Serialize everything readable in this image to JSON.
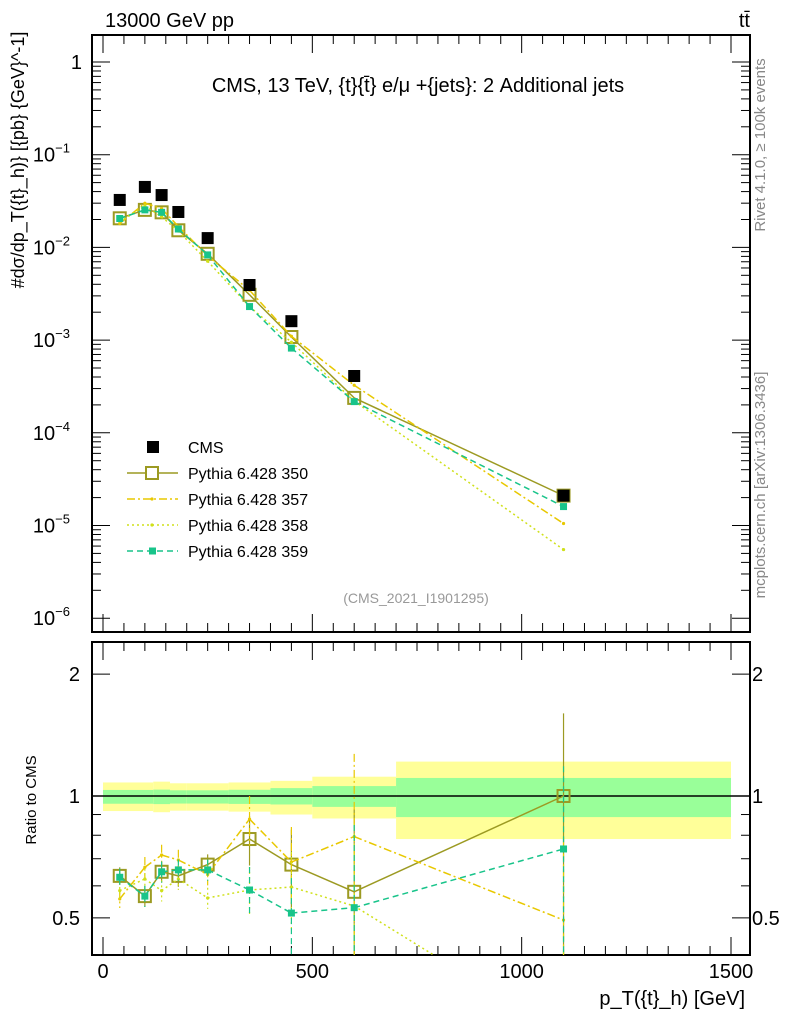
{
  "header": {
    "left": "13000 GeV pp",
    "right": "tt̄"
  },
  "side": {
    "top": "Rivet 4.1.0, ≥ 100k events",
    "bottom": "mcplots.cern.ch [arXiv:1306.3436]"
  },
  "colors": {
    "cms": "#000000",
    "p350": "#9c9a22",
    "p357": "#e8c800",
    "p358": "#cfe01a",
    "p359": "#18c48a",
    "band_outer": "#ffff99",
    "band_inner": "#99ff99"
  },
  "chart_data": [
    {
      "type": "line",
      "title": "CMS, 13 TeV, {t}{t̄} e/μ +{jets}: 2 Additional jets",
      "annotation": "(CMS_2021_I1901295)",
      "ylabel": "#dσ/dp_T({t}_h)} [{pb} {GeV}^-1]",
      "yscale": "log",
      "ylim": [
        7e-07,
        1.95
      ],
      "xlim": [
        -50,
        1500
      ],
      "yticks": [
        {
          "v": 1,
          "label": "1"
        },
        {
          "v": 0.1,
          "label": "10",
          "exp": "−1"
        },
        {
          "v": 0.01,
          "label": "10",
          "exp": "−2"
        },
        {
          "v": 0.001,
          "label": "10",
          "exp": "−3"
        },
        {
          "v": 0.0001,
          "label": "10",
          "exp": "−4"
        },
        {
          "v": 1e-05,
          "label": "10",
          "exp": "−5"
        },
        {
          "v": 1e-06,
          "label": "10",
          "exp": "−6"
        }
      ],
      "x": [
        40,
        100,
        140,
        180,
        250,
        350,
        450,
        600,
        1100
      ],
      "series": [
        {
          "name": "CMS",
          "key": "cms",
          "style": "data",
          "values": [
            0.0325,
            0.0449,
            0.0367,
            0.0241,
            0.0126,
            0.00393,
            0.0016,
            0.00041,
            2.1e-05
          ]
        },
        {
          "name": "Pythia 6.428 350",
          "key": "p350",
          "style": "solid-open-square",
          "values": [
            0.0206,
            0.0254,
            0.0239,
            0.0153,
            0.00853,
            0.00308,
            0.00108,
            0.000238,
            2.1e-05
          ]
        },
        {
          "name": "Pythia 6.428 357",
          "key": "p357",
          "style": "dashdot",
          "values": [
            0.0181,
            0.03,
            0.0262,
            0.0168,
            0.0081,
            0.00345,
            0.0011,
            0.000326,
            1.05e-05
          ]
        },
        {
          "name": "Pythia 6.428 358",
          "key": "p358",
          "style": "dotted",
          "values": [
            0.019,
            0.028,
            0.0214,
            0.015,
            0.0071,
            0.0023,
            0.00095,
            0.00022,
            5.5e-06
          ]
        },
        {
          "name": "Pythia 6.428 359",
          "key": "p359",
          "style": "dashed-filled-square",
          "values": [
            0.0205,
            0.0254,
            0.0239,
            0.0158,
            0.0083,
            0.0023,
            0.00082,
            0.000217,
            1.6e-05
          ]
        }
      ]
    },
    {
      "type": "line",
      "ylabel": "Ratio to CMS",
      "xlabel": "p_T({t}_h) [GeV]",
      "yscale": "log",
      "ylim": [
        0.405,
        2.4
      ],
      "xlim": [
        -50,
        1500
      ],
      "yticks": [
        {
          "v": 2,
          "label": "2"
        },
        {
          "v": 1,
          "label": "1"
        },
        {
          "v": 0.5,
          "label": "0.5"
        }
      ],
      "xticks": [
        {
          "v": 0,
          "label": "0"
        },
        {
          "v": 500,
          "label": "500"
        },
        {
          "v": 1000,
          "label": "1000"
        },
        {
          "v": 1500,
          "label": "1500"
        }
      ],
      "bin_edges": [
        0,
        80,
        120,
        160,
        200,
        300,
        400,
        500,
        700,
        1500
      ],
      "band_inner": [
        [
          0.957,
          1.035
        ],
        [
          0.957,
          1.035
        ],
        [
          0.955,
          1.037
        ],
        [
          0.958,
          1.033
        ],
        [
          0.958,
          1.033
        ],
        [
          0.956,
          1.036
        ],
        [
          0.953,
          1.046
        ],
        [
          0.94,
          1.058
        ],
        [
          0.887,
          1.108
        ]
      ],
      "band_outer": [
        [
          0.918,
          1.08
        ],
        [
          0.918,
          1.08
        ],
        [
          0.912,
          1.085
        ],
        [
          0.92,
          1.075
        ],
        [
          0.92,
          1.075
        ],
        [
          0.915,
          1.08
        ],
        [
          0.9,
          1.09
        ],
        [
          0.88,
          1.116
        ],
        [
          0.783,
          1.216
        ]
      ],
      "x": [
        40,
        100,
        140,
        180,
        250,
        350,
        450,
        600,
        1100
      ],
      "rel_err": [
        0.05,
        0.06,
        0.06,
        0.06,
        0.06,
        0.14,
        0.22,
        0.6,
        0.6
      ],
      "series": [
        {
          "name": "Pythia 6.428 350",
          "key": "p350",
          "style": "solid-open-square",
          "values": [
            0.635,
            0.566,
            0.65,
            0.635,
            0.677,
            0.783,
            0.677,
            0.58,
            1.0
          ]
        },
        {
          "name": "Pythia 6.428 357",
          "key": "p357",
          "style": "dashdot",
          "values": [
            0.557,
            0.667,
            0.715,
            0.695,
            0.64,
            0.877,
            0.687,
            0.794,
            0.494
          ]
        },
        {
          "name": "Pythia 6.428 358",
          "key": "p358",
          "style": "dotted",
          "values": [
            0.584,
            0.624,
            0.584,
            0.624,
            0.56,
            0.586,
            0.596,
            0.535,
            0.257
          ]
        },
        {
          "name": "Pythia 6.428 359",
          "key": "p359",
          "style": "dashed-filled-square",
          "values": [
            0.63,
            0.566,
            0.65,
            0.657,
            0.657,
            0.586,
            0.514,
            0.53,
            0.74
          ]
        }
      ]
    }
  ]
}
